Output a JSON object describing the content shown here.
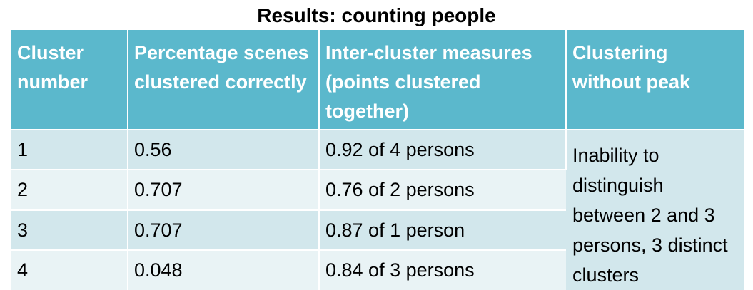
{
  "title": "Results: counting people",
  "table": {
    "headers": [
      "Cluster number",
      "Percentage scenes clustered correctly",
      "Inter-cluster measures (points clustered together)",
      "Clustering without peak"
    ],
    "rows": [
      {
        "cluster": "1",
        "percentage": "0.56",
        "inter": "0.92 of 4 persons"
      },
      {
        "cluster": "2",
        "percentage": "0.707",
        "inter": "0.76 of 2 persons"
      },
      {
        "cluster": "3",
        "percentage": "0.707",
        "inter": "0.87 of 1 person"
      },
      {
        "cluster": "4",
        "percentage": "0.048",
        "inter": "0.84 of 3 persons"
      }
    ],
    "merged_note": "Inability to distinguish between 2 and 3 persons, 3 distinct clusters"
  },
  "colors": {
    "header_bg": "#5bb8cc",
    "row_dark": "#d2e7ec",
    "row_light": "#e9f3f5"
  }
}
